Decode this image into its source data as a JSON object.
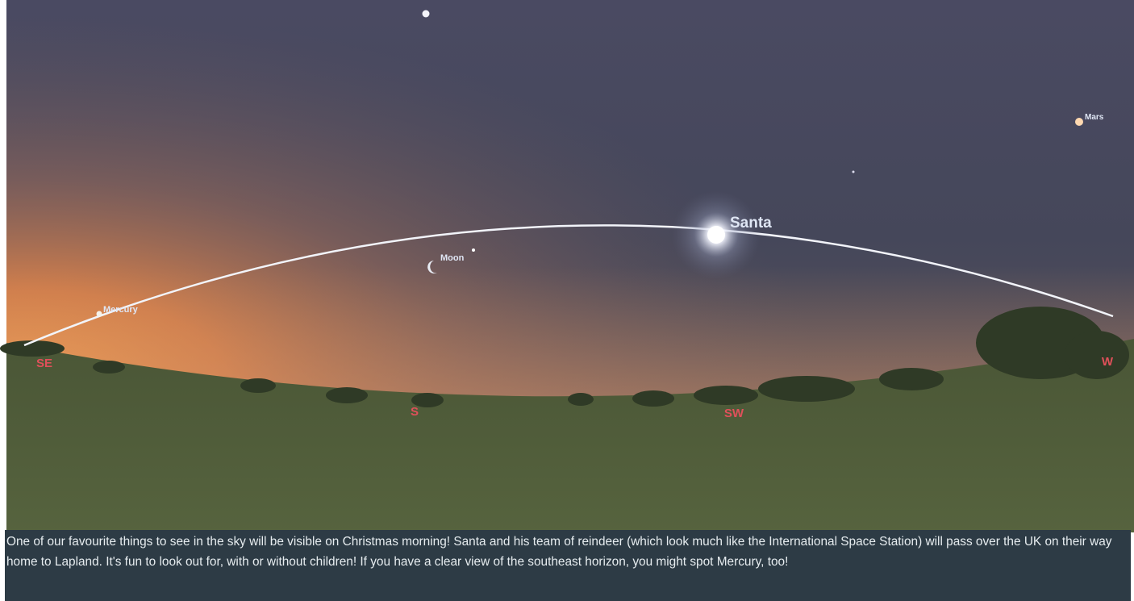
{
  "sky_labels": {
    "santa": "Santa",
    "moon": "Moon",
    "mercury": "Mercury",
    "mars": "Mars"
  },
  "compass": [
    "SE",
    "S",
    "SW",
    "W"
  ],
  "caption": "One of our favourite things to see in the sky will be visible on Christmas morning! Santa and his team of reindeer (which look much like the International Space Station) will pass over the UK on their way home to Lapland. It's fun to look out for, with or without children! If you have a clear view of the southeast horizon, you might spot Mercury, too!"
}
